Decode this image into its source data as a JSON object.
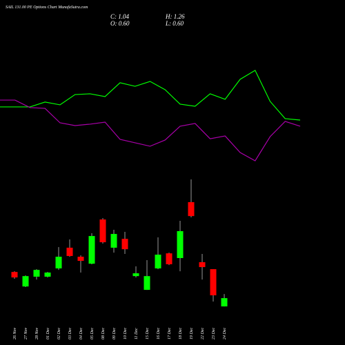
{
  "header": {
    "title": "SAIL 131.00 PE Options Chart MunafaSutra.com",
    "close": "C: 1.04",
    "high": "H: 1.26",
    "open": "O: 0.60",
    "low": "L: 0.60"
  },
  "chart_data": [
    {
      "type": "line",
      "ylim": [
        0,
        100
      ],
      "series": [
        {
          "color": "#00ff00",
          "values": [
            59.4,
            59.4,
            59.4,
            63.8,
            61.3,
            70.6,
            71.3,
            68.8,
            81.3,
            78.1,
            82.5,
            75,
            61.9,
            60,
            71.3,
            66.3,
            84.4,
            92.5,
            64.4,
            48.8,
            47.5
          ]
        },
        {
          "color": "#aa00aa",
          "values": [
            65.6,
            65.6,
            58.8,
            58.1,
            45,
            42.5,
            43.8,
            45.6,
            30,
            26.9,
            23.8,
            29.4,
            41.9,
            44.4,
            30.6,
            33.1,
            18.1,
            10.6,
            32.5,
            46.3,
            41.9
          ]
        }
      ]
    },
    {
      "type": "candlestick",
      "ylim": [
        -1.45,
        16.88
      ],
      "up_color": "#00ff00",
      "down_color": "#ff0000",
      "categories": [
        "26 Nov",
        "27 Nov",
        "28 Nov",
        "01 Dec",
        "02 Dec",
        "03 Dec",
        "04 Dec",
        "05 Dec",
        "08 Dec",
        "09 Dec",
        "10 Dec",
        "11 Dec",
        "15 Dec",
        "16 Dec",
        "17 Dec",
        "18 Dec",
        "19 Dec",
        "22 Dec",
        "23 Dec",
        "24 Dec"
      ],
      "open": [
        2.43,
        1.66,
        2.18,
        2.18,
        2.62,
        3.72,
        3.24,
        2.87,
        5.22,
        3.72,
        4.19,
        2.21,
        1.48,
        2.62,
        3.42,
        3.17,
        6.14,
        2.95,
        2.58,
        0.6
      ],
      "high": [
        2.47,
        2.25,
        2.58,
        2.43,
        3.75,
        4.16,
        3.31,
        4.49,
        5.29,
        4.67,
        4.56,
        2.73,
        3.06,
        4.27,
        3.46,
        5.15,
        7.35,
        3.39,
        2.58,
        1.26
      ],
      "low": [
        2.07,
        1.63,
        2.03,
        2.14,
        2.54,
        3.24,
        2.4,
        2.84,
        3.94,
        3.46,
        3.39,
        2.14,
        1.48,
        2.58,
        2.8,
        2.47,
        5.33,
        2.03,
        0.86,
        0.6
      ],
      "close": [
        2.14,
        2.21,
        2.54,
        2.4,
        3.24,
        3.28,
        3.02,
        4.34,
        4.01,
        4.45,
        3.64,
        2.36,
        2.21,
        3.35,
        2.84,
        4.6,
        5.4,
        2.69,
        1.19,
        1.04
      ]
    }
  ]
}
